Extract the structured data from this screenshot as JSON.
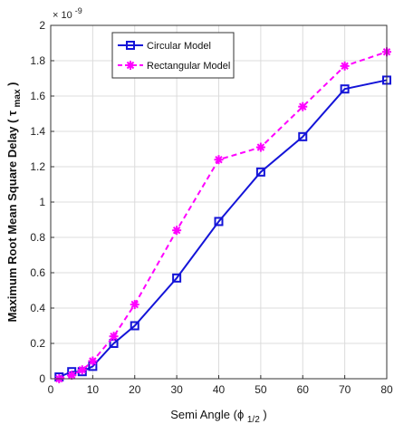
{
  "chart_data": {
    "type": "line",
    "xlabel": "Semi Angle (ϕ",
    "xlabel_sub": "1/2",
    "xlabel_tail": ")",
    "ylabel": "Maximum Root Mean Square Delay ( τ",
    "ylabel_sub": "max",
    "ylabel_tail": ")",
    "y_multiplier_base": "× 10",
    "y_multiplier_exp": "-9",
    "xlim": [
      0,
      80
    ],
    "ylim": [
      0,
      2
    ],
    "xticks": [
      0,
      10,
      20,
      30,
      40,
      50,
      60,
      70,
      80
    ],
    "yticks": [
      0,
      0.2,
      0.4,
      0.6,
      0.8,
      1,
      1.2,
      1.4,
      1.6,
      1.8,
      2
    ],
    "ytick_labels": [
      "0",
      "0.2",
      "0.4",
      "0.6",
      "0.8",
      "1",
      "1.2",
      "1.4",
      "1.6",
      "1.8",
      "2"
    ],
    "grid": true,
    "legend_position": "top-left",
    "x": [
      2,
      5,
      7.5,
      10,
      15,
      20,
      30,
      40,
      50,
      60,
      70,
      80
    ],
    "series": [
      {
        "name": "Circular Model",
        "color": "#1414d8",
        "marker": "square",
        "line": "solid",
        "values": [
          0.01,
          0.04,
          0.04,
          0.07,
          0.2,
          0.3,
          0.57,
          0.89,
          1.17,
          1.37,
          1.64,
          1.69
        ]
      },
      {
        "name": "Rectangular Model",
        "color": "#ff00ff",
        "marker": "star",
        "line": "dashed",
        "values": [
          0.0,
          0.02,
          0.05,
          0.1,
          0.24,
          0.42,
          0.84,
          1.24,
          1.31,
          1.54,
          1.77,
          1.85
        ]
      }
    ]
  }
}
